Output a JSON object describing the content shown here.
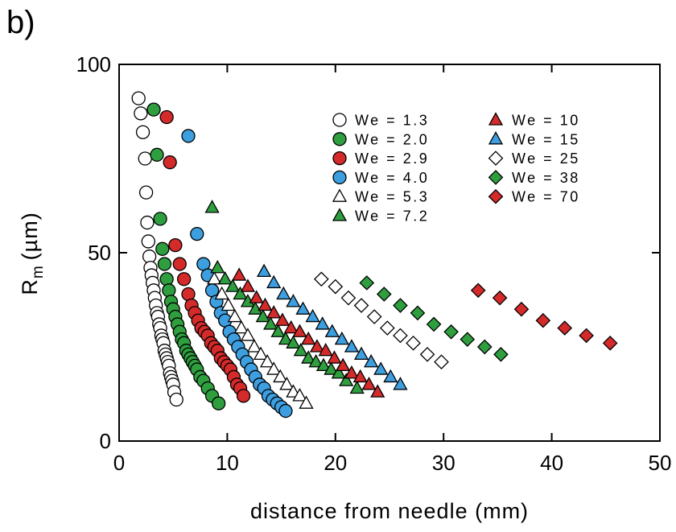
{
  "panel_label": "b)",
  "chart_data": {
    "type": "scatter",
    "xlabel": "distance from needle (mm)",
    "ylabel": "R",
    "ylabel_sub": "m",
    "ylabel_unit": "(µm)",
    "xlim": [
      0,
      50
    ],
    "ylim": [
      0,
      100
    ],
    "xticks": [
      "0",
      "10",
      "20",
      "30",
      "40",
      "50"
    ],
    "yticks": [
      "0",
      "50",
      "100"
    ],
    "grid": false,
    "legend": "top-right",
    "series": [
      {
        "name": "We = 1.3",
        "marker": "circle",
        "color": "#ffffff",
        "x": [
          1.8,
          2.0,
          2.2,
          2.4,
          2.5,
          2.6,
          2.7,
          2.8,
          2.9,
          3.0,
          3.1,
          3.2,
          3.3,
          3.4,
          3.5,
          3.6,
          3.7,
          3.8,
          3.9,
          4.0,
          4.1,
          4.2,
          4.3,
          4.4,
          4.5,
          4.6,
          4.7,
          4.8,
          4.9,
          5.0,
          5.1,
          5.3
        ],
        "y": [
          91,
          87,
          82,
          75,
          66,
          58,
          53,
          49,
          46,
          44,
          42,
          40,
          38,
          36,
          34,
          33,
          31,
          30,
          28,
          27,
          26,
          24,
          23,
          22,
          21,
          20,
          18,
          17,
          16,
          15,
          13,
          11
        ]
      },
      {
        "name": "We = 2.0",
        "marker": "circle",
        "color": "#2e9e3f",
        "x": [
          3.2,
          3.5,
          3.8,
          4.0,
          4.2,
          4.4,
          4.6,
          4.8,
          5.0,
          5.2,
          5.4,
          5.6,
          5.8,
          6.0,
          6.2,
          6.4,
          6.6,
          6.8,
          7.0,
          7.2,
          7.5,
          7.8,
          8.2,
          8.6,
          9.2
        ],
        "y": [
          88,
          76,
          59,
          51,
          47,
          43,
          40,
          37,
          35,
          33,
          31,
          29,
          27,
          26,
          24,
          23,
          22,
          21,
          20,
          19,
          17,
          16,
          14,
          12,
          10
        ]
      },
      {
        "name": "We = 2.9",
        "marker": "circle",
        "color": "#d42a2a",
        "x": [
          4.4,
          4.7,
          5.2,
          5.6,
          6.0,
          6.4,
          6.7,
          7.0,
          7.3,
          7.6,
          7.9,
          8.2,
          8.5,
          8.8,
          9.1,
          9.4,
          9.7,
          10.0,
          10.3,
          10.6,
          10.9,
          11.2,
          11.5
        ],
        "y": [
          86,
          74,
          52,
          47,
          43,
          39,
          36,
          34,
          32,
          30,
          29,
          28,
          26,
          25,
          24,
          22,
          21,
          20,
          19,
          17,
          15,
          14,
          12
        ]
      },
      {
        "name": "We = 4.0",
        "marker": "circle",
        "color": "#3d9ee0",
        "x": [
          6.4,
          7.2,
          7.8,
          8.2,
          8.6,
          9.0,
          9.4,
          9.8,
          10.2,
          10.6,
          11.0,
          11.4,
          11.8,
          12.2,
          12.6,
          13.0,
          13.4,
          13.8,
          14.2,
          14.6,
          15.0,
          15.4
        ],
        "y": [
          81,
          55,
          47,
          44,
          40,
          37,
          34,
          32,
          29,
          27,
          25,
          23,
          21,
          19,
          17,
          15,
          14,
          12,
          11,
          10,
          9,
          8
        ]
      },
      {
        "name": "We = 5.3",
        "marker": "triangle",
        "color": "#ffffff",
        "x": [
          8.8,
          9.5,
          10.1,
          10.7,
          11.3,
          11.9,
          12.5,
          13.1,
          13.7,
          14.3,
          14.9,
          15.5,
          16.1,
          16.7,
          17.3
        ],
        "y": [
          43,
          39,
          36,
          33,
          30,
          28,
          25,
          23,
          21,
          19,
          17,
          15,
          13,
          12,
          10
        ]
      },
      {
        "name": "We = 7.2",
        "marker": "triangle",
        "color": "#2e9e3f",
        "x": [
          8.6,
          9.1,
          9.8,
          10.5,
          11.2,
          11.9,
          12.6,
          13.3,
          14.0,
          14.7,
          15.4,
          16.1,
          16.8,
          17.5,
          18.2,
          18.9,
          19.6,
          20.3,
          21.0,
          22.0
        ],
        "y": [
          62,
          46,
          43,
          41,
          39,
          37,
          35,
          33,
          31,
          29,
          27,
          26,
          24,
          22,
          21,
          20,
          19,
          18,
          16,
          14
        ]
      },
      {
        "name": "We = 10",
        "marker": "triangle",
        "color": "#d42a2a",
        "x": [
          11.1,
          11.9,
          12.7,
          13.5,
          14.3,
          15.1,
          15.9,
          16.7,
          17.5,
          18.3,
          19.1,
          19.9,
          20.7,
          21.5,
          22.3,
          23.1,
          23.9
        ],
        "y": [
          44,
          41,
          38,
          36,
          34,
          32,
          30,
          29,
          27,
          25,
          24,
          22,
          20,
          18,
          17,
          15,
          13
        ]
      },
      {
        "name": "We = 15",
        "marker": "triangle",
        "color": "#3d9ee0",
        "x": [
          13.4,
          14.3,
          15.2,
          16.1,
          17.0,
          17.9,
          18.8,
          19.7,
          20.6,
          21.5,
          22.4,
          23.3,
          24.2,
          25.1,
          26.0
        ],
        "y": [
          45,
          42,
          39,
          37,
          35,
          33,
          31,
          29,
          27,
          25,
          23,
          21,
          19,
          17,
          15
        ]
      },
      {
        "name": "We = 25",
        "marker": "diamond",
        "color": "#ffffff",
        "x": [
          18.7,
          20.0,
          21.2,
          22.4,
          23.6,
          24.8,
          26.0,
          27.2,
          28.5,
          29.8
        ],
        "y": [
          43,
          41,
          38,
          36,
          33,
          30,
          28,
          26,
          23,
          21
        ]
      },
      {
        "name": "We = 38",
        "marker": "diamond",
        "color": "#2e9e3f",
        "x": [
          22.9,
          24.5,
          26.0,
          27.6,
          29.1,
          30.7,
          32.2,
          33.8,
          35.3
        ],
        "y": [
          42,
          39,
          36,
          34,
          31,
          29,
          27,
          25,
          23
        ]
      },
      {
        "name": "We = 70",
        "marker": "diamond",
        "color": "#d42a2a",
        "x": [
          33.2,
          35.2,
          37.2,
          39.2,
          41.2,
          43.2,
          45.4
        ],
        "y": [
          40,
          38,
          35,
          32,
          30,
          28,
          26
        ]
      }
    ]
  }
}
